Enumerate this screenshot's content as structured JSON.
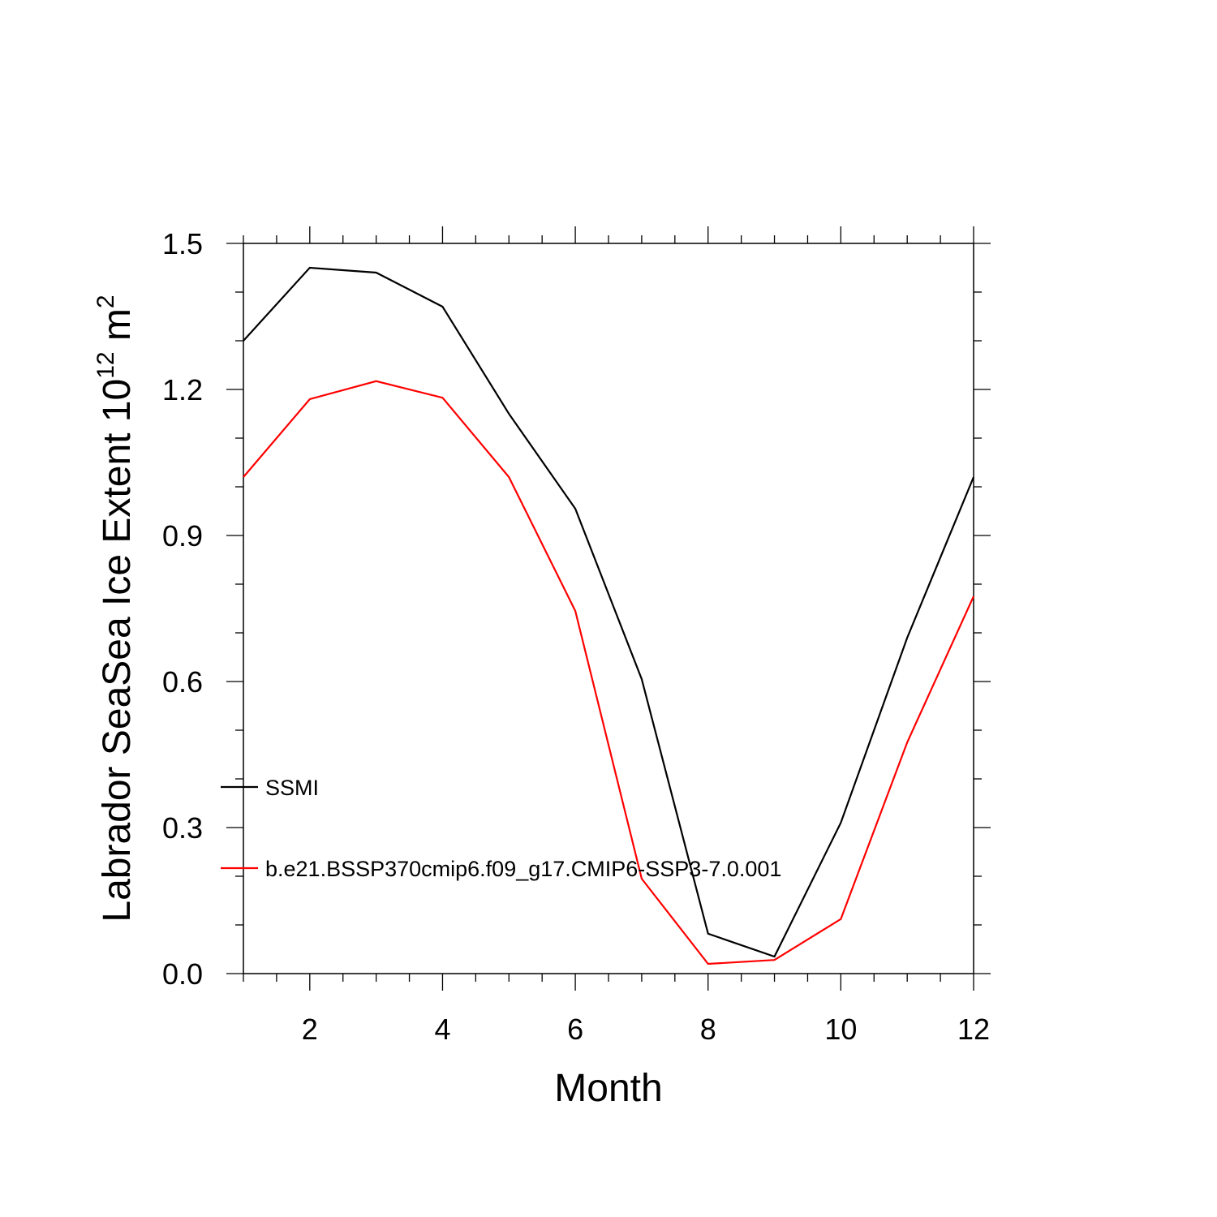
{
  "chart_data": {
    "type": "line",
    "title": "",
    "xlabel": "Month",
    "ylabel": {
      "text": "Labrador SeaSea Ice Extent 10",
      "superscript": "12",
      "unit": "m",
      "unit_superscript": "2"
    },
    "xlim": [
      1,
      12
    ],
    "ylim": [
      0,
      1.5
    ],
    "x_ticks": [
      2,
      4,
      6,
      8,
      10,
      12
    ],
    "x_tick_labels": [
      "2",
      "4",
      "6",
      "8",
      "10",
      "12"
    ],
    "y_ticks": [
      0,
      0.3,
      0.6,
      0.9,
      1.2,
      1.5
    ],
    "y_tick_labels": [
      "0.0",
      "0.3",
      "0.6",
      "0.9",
      "1.2",
      "1.5"
    ],
    "grid": false,
    "legend_placement": "lower-left",
    "x": [
      1,
      2,
      3,
      4,
      5,
      6,
      7,
      8,
      9,
      10,
      11,
      12
    ],
    "series": [
      {
        "name": "SSMI",
        "color": "#000000",
        "values": [
          1.3,
          1.45,
          1.44,
          1.37,
          1.15,
          0.955,
          0.605,
          0.082,
          0.035,
          0.31,
          0.69,
          1.02
        ]
      },
      {
        "name": "b.e21.BSSP370cmip6.f09_g17.CMIP6-SSP3-7.0.001",
        "color": "#ff0000",
        "values": [
          1.02,
          1.18,
          1.217,
          1.183,
          1.02,
          0.745,
          0.195,
          0.02,
          0.028,
          0.112,
          0.475,
          0.775
        ]
      }
    ]
  }
}
